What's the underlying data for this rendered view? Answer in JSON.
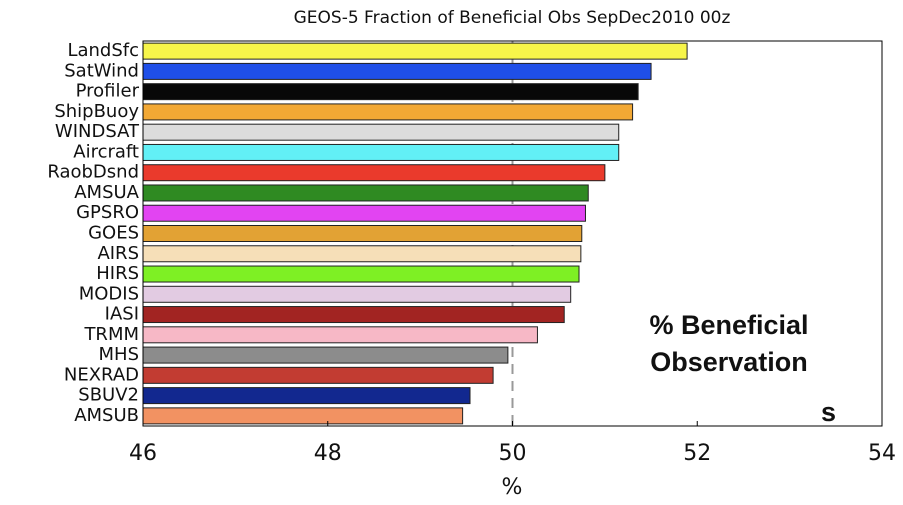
{
  "chart_data": {
    "type": "barh",
    "title": "GEOS-5 Fraction of Beneficial Obs SepDec2010 00z",
    "xlabel": "%",
    "categories": [
      "LandSfc",
      "SatWind",
      "Profiler",
      "ShipBuoy",
      "WINDSAT",
      "Aircraft",
      "RaobDsnd",
      "AMSUA",
      "GPSRO",
      "GOES",
      "AIRS",
      "HIRS",
      "MODIS",
      "IASI",
      "TRMM",
      "MHS",
      "NEXRAD",
      "SBUV2",
      "AMSUB"
    ],
    "values": [
      51.89,
      51.5,
      51.36,
      51.3,
      51.15,
      51.15,
      51.0,
      50.82,
      50.79,
      50.75,
      50.74,
      50.72,
      50.63,
      50.56,
      50.27,
      49.95,
      49.79,
      49.54,
      49.46
    ],
    "colors": [
      "#f7f54a",
      "#1f4fe8",
      "#080808",
      "#f2a834",
      "#dcdcdc",
      "#62f0f6",
      "#ea3a2c",
      "#2f8a22",
      "#e244f2",
      "#e2a234",
      "#f6dfb8",
      "#7ef024",
      "#e2cbe2",
      "#a22422",
      "#f7b8c6",
      "#8c8c8c",
      "#c23c32",
      "#12288f",
      "#f29262"
    ],
    "xlim": [
      46,
      54
    ],
    "xticks": [
      46,
      48,
      50,
      52,
      54
    ],
    "reference_line": 50,
    "annotation": [
      "% Beneficial",
      "Observation",
      "s"
    ]
  }
}
